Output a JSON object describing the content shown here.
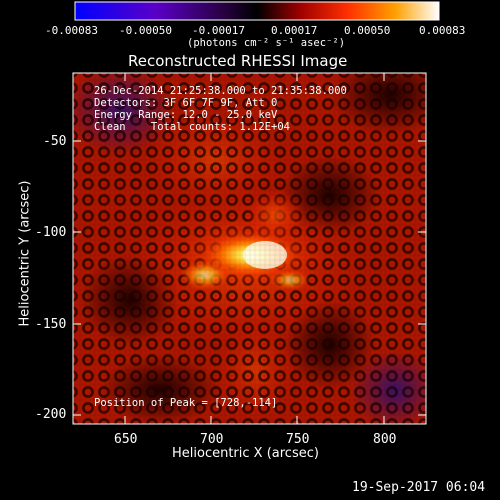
{
  "colorbar": {
    "tick_labels": [
      "-0.00083",
      "-0.00050",
      "-0.00017",
      "0.00017",
      "0.00050",
      "0.00083"
    ],
    "unit_label": "(photons cm⁻² s⁻¹ asec⁻²)"
  },
  "title": "Reconstructed RHESSI Image",
  "info": {
    "line1": "26-Dec-2014 21:25:38.000 to 21:35:38.000",
    "line2": "Detectors: 3F 6F 7F 9F, Att 0",
    "line3": "Energy Range: 12.0 - 25.0 keV",
    "line4": "Clean    Total counts: 1.12E+04",
    "peak": "Position of Peak = [728,-114]"
  },
  "axes": {
    "xlabel": "Heliocentric X (arcsec)",
    "ylabel": "Heliocentric Y (arcsec)",
    "xticks": [
      "650",
      "700",
      "750",
      "800"
    ],
    "yticks": [
      "-50",
      "-100",
      "-150",
      "-200"
    ],
    "xlim": [
      623,
      815
    ],
    "ylim": [
      -208,
      -20
    ]
  },
  "timestamp": "19-Sep-2017 06:04"
}
